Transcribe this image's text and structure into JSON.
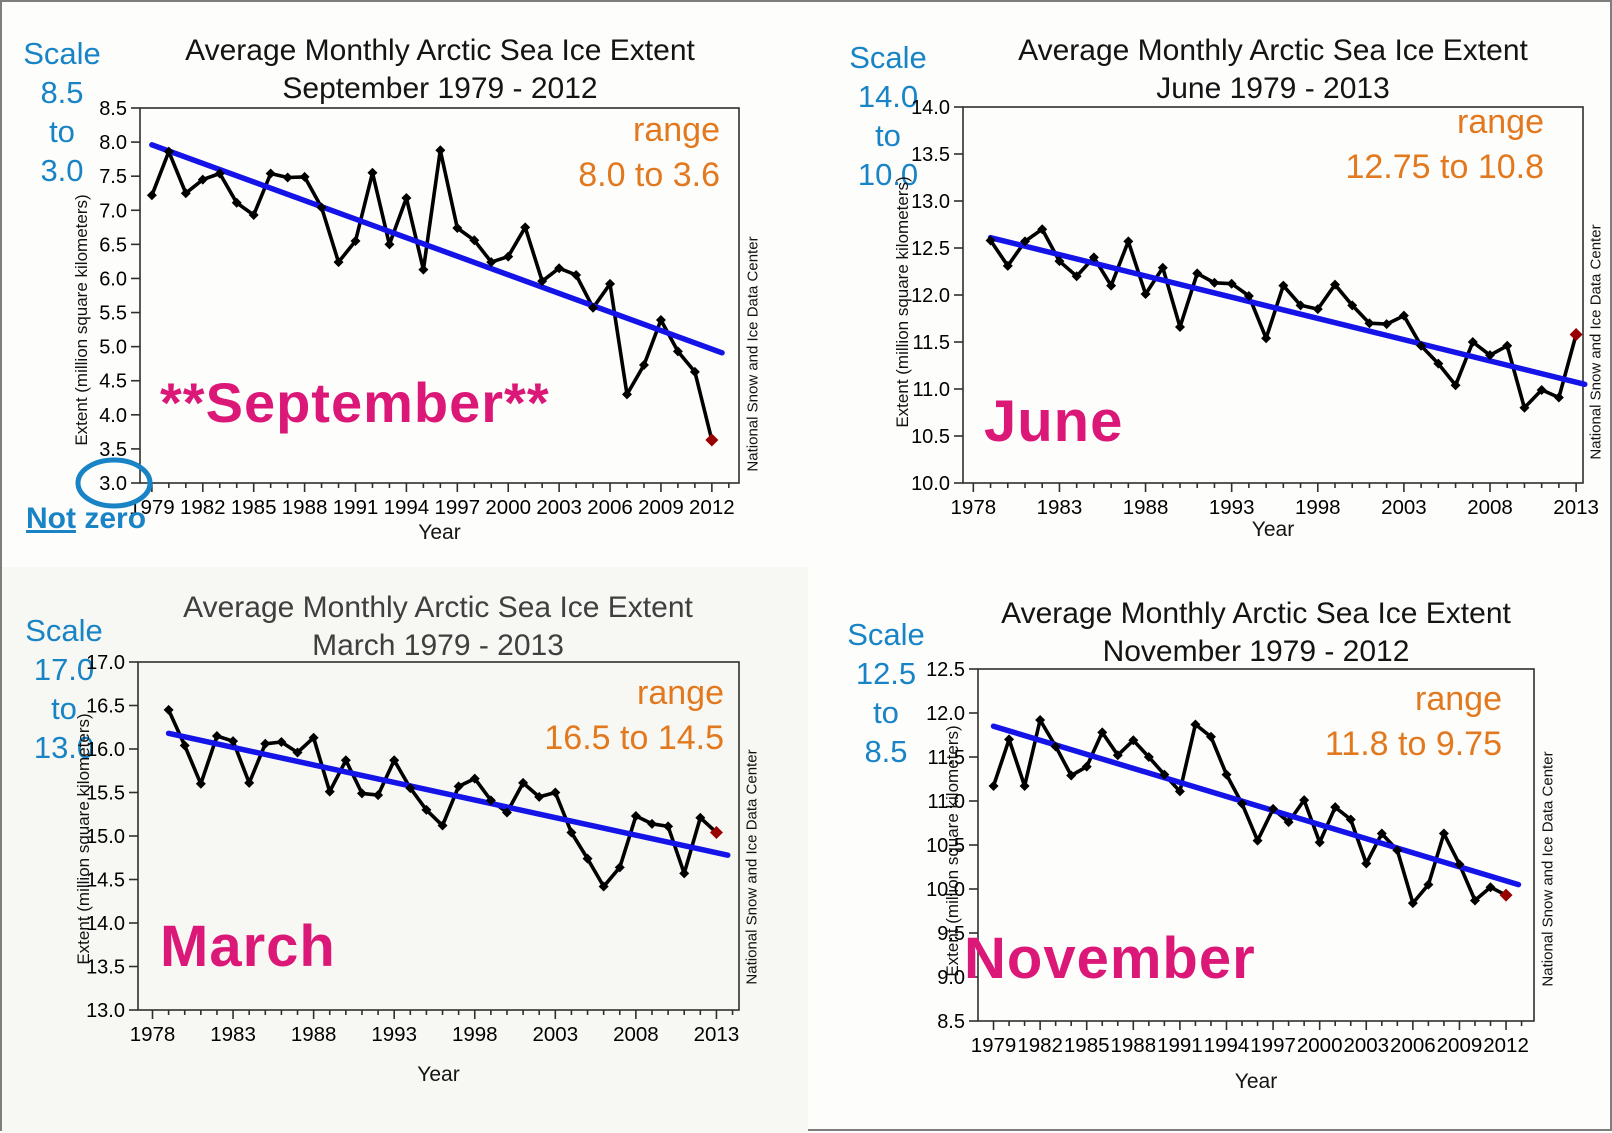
{
  "page": {
    "background": "#fdfdfc",
    "border_color": "#7e7e7e"
  },
  "colors": {
    "scale_blue": "#1884C6",
    "range_orange": "#E2791F",
    "month_pink": "#DB1878",
    "trend_blue": "#1414E8",
    "series_black": "#000000",
    "final_point_red": "#990000",
    "axis": "#2f2f2f"
  },
  "chart_data": [
    {
      "type": "line",
      "title": "Average Monthly Arctic Sea Ice Extent",
      "subtitle": "September 1979 - 2012",
      "month_label": "**September**",
      "scale_note": {
        "word": "Scale",
        "from": "8.5",
        "connector": "to",
        "to": "3.0"
      },
      "range_note": {
        "word": "range",
        "values": "8.0 to 3.6"
      },
      "ylabel": "Extent (million square kilometers)",
      "xlabel": "Year",
      "credit": "National Snow and Ice Data Center",
      "ylim": [
        3.0,
        8.5
      ],
      "ytick_step": 0.5,
      "xlim": [
        1978.3,
        2013.6
      ],
      "xticks": [
        1979,
        1982,
        1985,
        1988,
        1991,
        1994,
        1997,
        2000,
        2003,
        2006,
        2009,
        2012
      ],
      "minor_ticks": [
        1979,
        2013
      ],
      "x_start_year": 1979,
      "x_step": 1,
      "values": [
        7.22,
        7.86,
        7.25,
        7.45,
        7.54,
        7.11,
        6.93,
        7.54,
        7.48,
        7.49,
        7.04,
        6.24,
        6.55,
        7.55,
        6.5,
        7.18,
        6.13,
        7.88,
        6.74,
        6.56,
        6.24,
        6.32,
        6.75,
        5.96,
        6.15,
        6.05,
        5.57,
        5.92,
        4.3,
        4.73,
        5.39,
        4.93,
        4.63,
        3.63
      ],
      "trend": {
        "x1": 1979,
        "y1": 7.96,
        "x2": 2012.6,
        "y2": 4.91
      },
      "final_point_highlighted": true,
      "annotation": {
        "circled_tick": "3.0",
        "note_word1": "Not",
        "note_word2": "zero"
      }
    },
    {
      "type": "line",
      "title": "Average Monthly Arctic Sea Ice Extent",
      "subtitle": "June 1979 - 2013",
      "month_label": "June",
      "scale_note": {
        "word": "Scale",
        "from": "14.0",
        "connector": "to",
        "to": "10.0"
      },
      "range_note": {
        "word": "range",
        "values": "12.75 to 10.8"
      },
      "ylabel": "Extent (million square kilometers)",
      "xlabel": "Year",
      "credit": "National Snow and Ice Data Center",
      "ylim": [
        10.0,
        14.0
      ],
      "ytick_step": 0.5,
      "xlim": [
        1977.4,
        2013.4
      ],
      "xticks": [
        1978,
        1983,
        1988,
        1993,
        1998,
        2003,
        2008,
        2013
      ],
      "minor_ticks": [
        1978,
        2013
      ],
      "x_start_year": 1979,
      "x_step": 1,
      "values": [
        12.58,
        12.31,
        12.57,
        12.7,
        12.36,
        12.2,
        12.4,
        12.1,
        12.57,
        12.01,
        12.29,
        11.66,
        12.23,
        12.13,
        12.12,
        11.99,
        11.54,
        12.1,
        11.89,
        11.85,
        12.11,
        11.89,
        11.7,
        11.69,
        11.78,
        11.46,
        11.27,
        11.04,
        11.5,
        11.36,
        11.46,
        10.8,
        10.99,
        10.91,
        11.58
      ],
      "trend": {
        "x1": 1979,
        "y1": 12.61,
        "x2": 2013.5,
        "y2": 11.05
      },
      "final_point_highlighted": true,
      "annotation": null
    },
    {
      "type": "line",
      "title": "Average Monthly Arctic Sea Ice Extent",
      "subtitle": "March 1979 - 2013",
      "month_label": "March",
      "scale_note": {
        "word": "Scale",
        "from": "17.0",
        "connector": "to",
        "to": "13.0"
      },
      "range_note": {
        "word": "range",
        "values": "16.5 to 14.5"
      },
      "ylabel": "Extent (million square kilometers)",
      "xlabel": "Year",
      "credit": "National Snow and Ice Data Center",
      "ylim": [
        13.0,
        17.0
      ],
      "ytick_step": 0.5,
      "xlim": [
        1977.1,
        2014.4
      ],
      "xticks": [
        1978,
        1983,
        1988,
        1993,
        1998,
        2003,
        2008,
        2013
      ],
      "minor_ticks": [
        1978,
        2014
      ],
      "x_start_year": 1979,
      "x_step": 1,
      "values": [
        16.45,
        16.04,
        15.6,
        16.15,
        16.09,
        15.61,
        16.06,
        16.08,
        15.96,
        16.13,
        15.51,
        15.87,
        15.49,
        15.47,
        15.87,
        15.55,
        15.3,
        15.12,
        15.57,
        15.66,
        15.41,
        15.27,
        15.61,
        15.45,
        15.5,
        15.04,
        14.74,
        14.42,
        14.64,
        15.23,
        15.14,
        15.11,
        14.57,
        15.21,
        15.04
      ],
      "trend": {
        "x1": 1979,
        "y1": 16.18,
        "x2": 2013.7,
        "y2": 14.78
      },
      "final_point_highlighted": true,
      "annotation": null
    },
    {
      "type": "line",
      "title": "Average Monthly Arctic Sea Ice Extent",
      "subtitle": "November 1979 - 2012",
      "month_label": "November",
      "scale_note": {
        "word": "Scale",
        "from": "12.5",
        "connector": "to",
        "to": "8.5"
      },
      "range_note": {
        "word": "range",
        "values": "11.8 to 9.75"
      },
      "ylabel": "Extent (million square kilometers)",
      "xlabel": "Year",
      "credit": "National Snow and Ice Data Center",
      "ylim": [
        8.5,
        12.5
      ],
      "ytick_step": 0.5,
      "xlim": [
        1978.0,
        2013.8
      ],
      "xticks": [
        1979,
        1982,
        1985,
        1988,
        1991,
        1994,
        1997,
        2000,
        2003,
        2006,
        2009,
        2012
      ],
      "minor_ticks": [
        1979,
        2013
      ],
      "x_start_year": 1979,
      "x_step": 1,
      "values": [
        11.17,
        11.7,
        11.17,
        11.92,
        11.62,
        11.29,
        11.39,
        11.78,
        11.52,
        11.69,
        11.5,
        11.3,
        11.11,
        11.87,
        11.73,
        11.3,
        10.97,
        10.55,
        10.91,
        10.76,
        11.01,
        10.53,
        10.93,
        10.79,
        10.29,
        10.63,
        10.44,
        9.84,
        10.05,
        10.63,
        10.28,
        9.87,
        10.02,
        9.93
      ],
      "trend": {
        "x1": 1979,
        "y1": 11.85,
        "x2": 2012.8,
        "y2": 10.05
      },
      "final_point_highlighted": true,
      "annotation": null
    }
  ]
}
